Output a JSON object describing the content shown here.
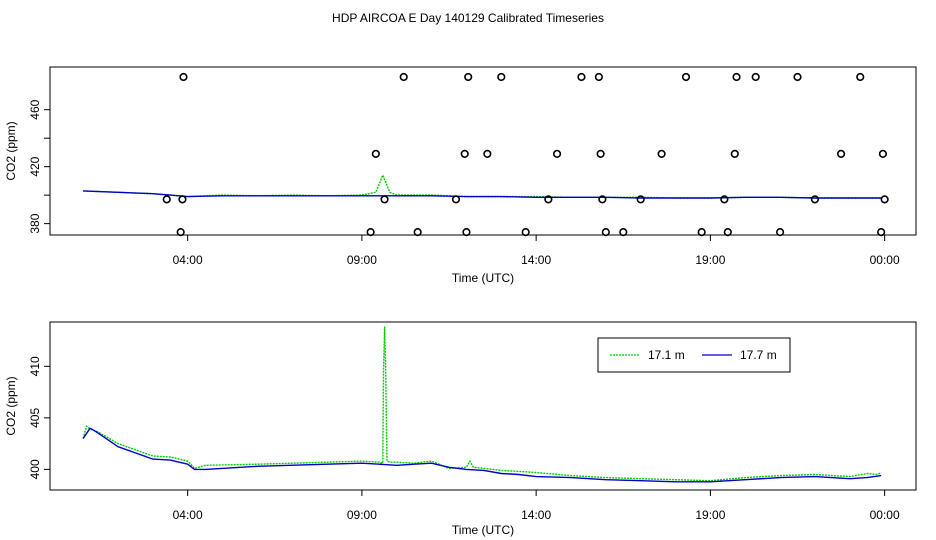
{
  "title": "HDP AIRCOA E  Day 140129  Calibrated Timeseries",
  "colors": {
    "series1": "#00cc00",
    "series2": "#0000cc",
    "axis": "#000000"
  },
  "chart_data": [
    {
      "type": "scatter",
      "xlabel": "Time (UTC)",
      "ylabel": "CO2 (ppm)",
      "xticks": [
        "04:00",
        "09:00",
        "14:00",
        "19:00",
        "00:00"
      ],
      "xtick_values": [
        4,
        9,
        14,
        19,
        24
      ],
      "yticks": [
        380,
        420,
        460
      ],
      "yticks_all": [
        380,
        400,
        420,
        440,
        460
      ],
      "xlim": [
        0.05,
        24.9
      ],
      "ylim": [
        372,
        490
      ],
      "legend": false,
      "series": [
        {
          "color": "#00cc00",
          "x": [
            1.0,
            2.0,
            3.0,
            3.5,
            4.0,
            5.0,
            6.0,
            7.0,
            8.0,
            9.0,
            9.4,
            9.6,
            9.8,
            10.0,
            11.0,
            12.0,
            13.0,
            14.0,
            15.0,
            16.0,
            17.0,
            18.0,
            19.0,
            20.0,
            21.0,
            22.0,
            23.0,
            23.9
          ],
          "y": [
            403,
            402,
            401,
            400,
            399,
            400,
            399.5,
            400,
            399.5,
            400,
            402,
            414,
            402,
            400,
            400,
            399,
            399,
            399,
            398.5,
            398.5,
            398.5,
            398,
            398,
            398.5,
            398.5,
            398,
            398,
            398
          ]
        },
        {
          "color": "#0000cc",
          "x": [
            1.0,
            2.0,
            3.0,
            3.5,
            4.0,
            5.0,
            6.0,
            7.0,
            8.0,
            9.0,
            10.0,
            11.0,
            12.0,
            13.0,
            14.0,
            15.0,
            16.0,
            17.0,
            18.0,
            19.0,
            20.0,
            21.0,
            22.0,
            23.0,
            23.9
          ],
          "y": [
            403,
            402,
            401,
            400,
            399,
            399.5,
            399.5,
            399.5,
            399.5,
            399.5,
            399.5,
            399.5,
            399,
            399,
            398.5,
            398.5,
            398.5,
            398,
            398,
            398,
            398.5,
            398.5,
            398,
            398,
            398
          ]
        },
        {
          "color": "#000000",
          "marker": "open-circle",
          "x": [
            3.4,
            3.8,
            3.85,
            3.88,
            9.25,
            9.4,
            9.65,
            10.2,
            10.6,
            11.7,
            11.95,
            12.0,
            12.05,
            12.6,
            13.0,
            13.7,
            14.35,
            14.6,
            15.3,
            15.8,
            15.85,
            15.9,
            16.0,
            16.5,
            17.0,
            17.6,
            18.3,
            18.75,
            19.4,
            19.5,
            19.7,
            19.75,
            20.3,
            21.0,
            21.5,
            22.0,
            22.75,
            23.3,
            23.9,
            23.95,
            24.0
          ],
          "y": [
            397,
            374,
            397,
            483,
            374,
            429,
            397,
            483,
            374,
            397,
            429,
            374,
            483,
            429,
            483,
            374,
            397,
            429,
            483,
            483,
            429,
            397,
            374,
            374,
            397,
            429,
            483,
            374,
            397,
            374,
            429,
            483,
            483,
            374,
            483,
            397,
            429,
            483,
            374,
            429,
            397
          ]
        }
      ]
    },
    {
      "type": "line",
      "xlabel": "Time (UTC)",
      "ylabel": "CO2 (ppm)",
      "xticks": [
        "04:00",
        "09:00",
        "14:00",
        "19:00",
        "00:00"
      ],
      "xtick_values": [
        4,
        9,
        14,
        19,
        24
      ],
      "yticks": [
        400,
        405,
        410
      ],
      "xlim": [
        0.05,
        24.9
      ],
      "ylim": [
        398,
        414.3
      ],
      "legend": true,
      "legend_position": "top-right",
      "series": [
        {
          "name": "17.1 m",
          "color": "#00cc00",
          "x": [
            1.0,
            1.1,
            1.2,
            1.4,
            2.0,
            3.0,
            3.5,
            4.0,
            4.2,
            4.5,
            6.0,
            8.0,
            9.0,
            9.5,
            9.6,
            9.62,
            9.65,
            9.68,
            9.72,
            9.8,
            10.0,
            10.5,
            11.0,
            11.5,
            12.0,
            12.1,
            12.2,
            12.5,
            13.0,
            13.5,
            14.0,
            15.0,
            16.0,
            17.0,
            18.0,
            19.0,
            20.0,
            21.0,
            22.0,
            23.0,
            23.5,
            23.8,
            23.9
          ],
          "y": [
            403,
            404.2,
            403.9,
            403.7,
            402.5,
            401.3,
            401.2,
            400.8,
            400.1,
            400.4,
            400.5,
            400.7,
            400.8,
            400.7,
            400.6,
            409.5,
            413.8,
            410,
            400.8,
            400.7,
            400.7,
            400.6,
            400.8,
            400.1,
            400.2,
            400.8,
            400.2,
            400.1,
            399.9,
            399.8,
            399.7,
            399.4,
            399.2,
            399.1,
            399,
            398.9,
            399.2,
            399.4,
            399.5,
            399.3,
            399.6,
            399.5,
            399.7
          ]
        },
        {
          "name": "17.7 m",
          "color": "#0000cc",
          "x": [
            1.0,
            1.2,
            1.4,
            2.0,
            3.0,
            3.5,
            4.0,
            4.2,
            4.5,
            6.0,
            8.0,
            9.0,
            9.5,
            10.0,
            10.5,
            11.0,
            11.5,
            12.0,
            12.5,
            13.0,
            13.5,
            14.0,
            15.0,
            16.0,
            17.0,
            18.0,
            19.0,
            20.0,
            21.0,
            22.0,
            23.0,
            23.5,
            23.9
          ],
          "y": [
            403,
            404,
            403.6,
            402.2,
            401,
            400.9,
            400.5,
            400,
            400,
            400.3,
            400.5,
            400.6,
            400.5,
            400.4,
            400.5,
            400.6,
            400.2,
            400,
            399.9,
            399.6,
            399.5,
            399.3,
            399.2,
            399,
            398.9,
            398.8,
            398.8,
            399,
            399.2,
            399.3,
            399.1,
            399.2,
            399.4
          ]
        }
      ]
    }
  ]
}
